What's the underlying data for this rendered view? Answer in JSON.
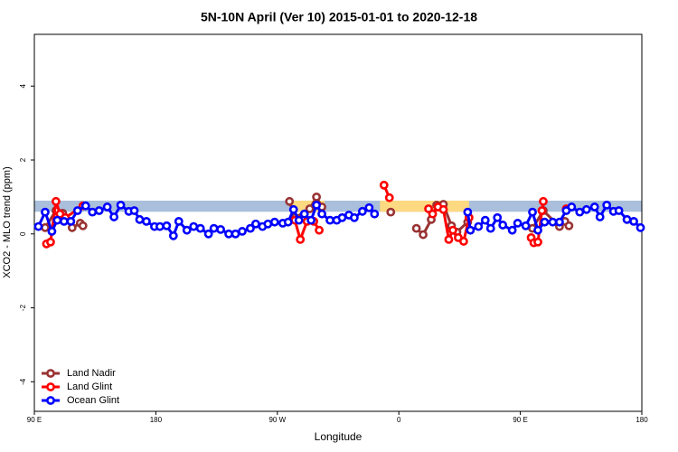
{
  "chart_data": {
    "type": "line",
    "title": "5N-10N April (Ver 10)   2015-01-01 to 2020-12-18",
    "x_label": "Longitude",
    "y_label": "XCO2 - MLO trend (ppm)",
    "xlim": [
      90,
      540
    ],
    "ylim": [
      -4.8,
      5.4
    ],
    "xticks": [
      {
        "value": 90,
        "label": "90 E"
      },
      {
        "value": 180,
        "label": "180"
      },
      {
        "value": 270,
        "label": "90 W"
      },
      {
        "value": 360,
        "label": "0"
      },
      {
        "value": 450,
        "label": "90 E"
      },
      {
        "value": 540,
        "label": "180"
      }
    ],
    "yticks": [
      -4,
      -2,
      0,
      2,
      4
    ],
    "band": {
      "ylim": [
        0.6,
        0.9
      ],
      "color": "#a9bfdc"
    },
    "highlights": {
      "x": [
        [
          281,
          305
        ],
        [
          346,
          412
        ]
      ],
      "color": "#fdd982"
    },
    "legend": "bottom-left",
    "series": [
      {
        "name": "Land Nadir",
        "color": "#993333",
        "x": [
          98,
          106,
          111,
          118,
          124,
          126,
          null,
          279,
          283,
          294,
          299,
          303,
          null,
          354,
          null,
          373,
          378,
          384,
          388,
          393,
          399,
          403,
          411,
          null,
          459,
          467,
          479,
          483,
          486
        ],
        "values": [
          0.17,
          0.63,
          0.56,
          0.17,
          0.29,
          0.22,
          null,
          0.88,
          0.44,
          0.68,
          1.0,
          0.73,
          null,
          0.59,
          null,
          0.15,
          -0.02,
          0.39,
          0.78,
          0.8,
          0.22,
          0.05,
          0.32,
          null,
          0.15,
          0.63,
          0.2,
          0.34,
          0.22
        ]
      },
      {
        "name": "Land Glint",
        "color": "#ff0000",
        "x": [
          99,
          102,
          106,
          109,
          113,
          126,
          null,
          283,
          287,
          292,
          297,
          301,
          null,
          349,
          353,
          null,
          382,
          385,
          389,
          393,
          397,
          400,
          404,
          408,
          412,
          null,
          458,
          460,
          463,
          466,
          467,
          null,
          484
        ],
        "values": [
          -0.27,
          -0.22,
          0.88,
          0.54,
          0.44,
          0.76,
          null,
          0.37,
          -0.15,
          0.34,
          0.34,
          0.1,
          null,
          1.32,
          0.98,
          null,
          0.68,
          0.54,
          0.73,
          0.66,
          -0.15,
          0.1,
          -0.1,
          -0.2,
          0.44,
          null,
          -0.1,
          -0.24,
          -0.22,
          0.63,
          0.88,
          null,
          0.68
        ]
      },
      {
        "name": "Ocean Glint",
        "color": "#0000ff",
        "x": [
          93,
          98,
          103,
          107,
          112,
          117,
          122,
          128,
          133,
          138,
          144,
          149,
          154,
          160,
          164,
          168,
          173,
          179,
          183,
          188,
          193,
          197,
          203,
          208,
          213,
          219,
          223,
          228,
          234,
          239,
          244,
          250,
          254,
          259,
          263,
          268,
          274,
          278,
          282,
          286,
          290,
          295,
          299,
          303,
          309,
          314,
          318,
          323,
          327,
          333,
          338,
          342,
          null,
          411,
          413,
          419,
          424,
          428,
          433,
          437,
          444,
          448,
          454,
          459,
          463,
          468,
          474,
          479,
          484,
          488,
          494,
          499,
          505,
          509,
          514,
          519,
          523,
          529,
          534,
          539
        ],
        "values": [
          0.2,
          0.59,
          0.07,
          0.37,
          0.34,
          0.34,
          0.63,
          0.76,
          0.59,
          0.63,
          0.73,
          0.46,
          0.78,
          0.61,
          0.63,
          0.39,
          0.34,
          0.2,
          0.2,
          0.22,
          -0.05,
          0.34,
          0.1,
          0.2,
          0.15,
          0,
          0.15,
          0.12,
          0,
          0,
          0.07,
          0.15,
          0.27,
          0.2,
          0.27,
          0.32,
          0.29,
          0.32,
          0.66,
          0.37,
          0.54,
          0.37,
          0.78,
          0.54,
          0.37,
          0.37,
          0.44,
          0.51,
          0.44,
          0.61,
          0.71,
          0.54,
          null,
          0.59,
          0.1,
          0.2,
          0.37,
          0.15,
          0.44,
          0.24,
          0.1,
          0.29,
          0.22,
          0.59,
          0.1,
          0.32,
          0.32,
          0.32,
          0.63,
          0.73,
          0.59,
          0.66,
          0.73,
          0.46,
          0.78,
          0.61,
          0.63,
          0.39,
          0.34,
          0.17
        ]
      }
    ]
  }
}
